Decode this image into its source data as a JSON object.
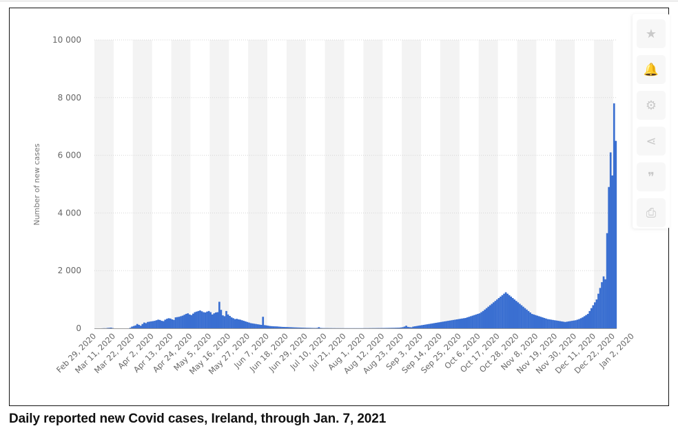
{
  "caption": "Daily reported new Covid cases, Ireland, through Jan. 7, 2021",
  "toolbar": {
    "buttons": [
      {
        "name": "star-icon",
        "glyph": "★"
      },
      {
        "name": "bell-icon",
        "glyph": "🔔"
      },
      {
        "name": "gear-icon",
        "glyph": "⚙"
      },
      {
        "name": "share-icon",
        "glyph": "⋖"
      },
      {
        "name": "quote-icon",
        "glyph": "❞"
      },
      {
        "name": "print-icon",
        "glyph": "⎙"
      }
    ]
  },
  "colors": {
    "bar": "#3a6fd1",
    "band": "#f3f3f3",
    "grid": "#d5d5d5",
    "axis": "#9a9a9a"
  },
  "chart_data": {
    "type": "bar",
    "title": "",
    "xlabel": "",
    "ylabel": "Number of new cases",
    "ylim": [
      0,
      10000
    ],
    "yticks": [
      0,
      2000,
      4000,
      6000,
      8000,
      10000
    ],
    "ytick_labels": [
      "0",
      "2 000",
      "4 000",
      "6 000",
      "8 000",
      "10 000"
    ],
    "grid": true,
    "x_start": "Feb 29, 2020",
    "x_tick_labels": [
      "Feb 29, 2020",
      "Mar 11, 2020",
      "Mar 22, 2020",
      "Apr 2, 2020",
      "Apr 13, 2020",
      "Apr 24, 2020",
      "May 5, 2020",
      "May 16, 2020",
      "May 27, 2020",
      "Jun 7, 2020",
      "Jun 18, 2020",
      "Jun 29, 2020",
      "Jul 10, 2020",
      "Jul 21, 2020",
      "Aug 1, 2020",
      "Aug 12, 2020",
      "Aug 23, 2020",
      "Sep 3, 2020",
      "Sep 14, 2020",
      "Sep 25, 2020",
      "Oct 6, 2020",
      "Oct 17, 2020",
      "Oct 28, 2020",
      "Nov 8, 2020",
      "Nov 19, 2020",
      "Nov 30, 2020",
      "Dec 11, 2020",
      "Dec 22, 2020",
      "Jan 2, 2020"
    ],
    "values": [
      1,
      0,
      0,
      0,
      2,
      5,
      4,
      13,
      18,
      24,
      9,
      0,
      0,
      0,
      0,
      0,
      0,
      0,
      0,
      0,
      20,
      60,
      80,
      100,
      150,
      120,
      90,
      150,
      200,
      180,
      220,
      230,
      240,
      250,
      260,
      280,
      300,
      290,
      260,
      250,
      300,
      330,
      350,
      340,
      310,
      290,
      380,
      390,
      400,
      420,
      440,
      470,
      500,
      520,
      480,
      460,
      510,
      560,
      580,
      600,
      620,
      590,
      560,
      550,
      580,
      600,
      560,
      480,
      520,
      550,
      560,
      920,
      640,
      450,
      420,
      600,
      480,
      430,
      380,
      350,
      320,
      330,
      310,
      300,
      280,
      260,
      240,
      220,
      200,
      180,
      170,
      160,
      150,
      140,
      130,
      120,
      400,
      110,
      100,
      90,
      80,
      75,
      70,
      68,
      66,
      60,
      55,
      50,
      48,
      45,
      44,
      40,
      38,
      35,
      32,
      30,
      28,
      26,
      24,
      22,
      20,
      18,
      17,
      16,
      14,
      13,
      12,
      15,
      40,
      14,
      10,
      9,
      8,
      8,
      7,
      7,
      6,
      6,
      5,
      5,
      5,
      5,
      5,
      5,
      5,
      5,
      5,
      5,
      5,
      5,
      5,
      5,
      5,
      5,
      6,
      6,
      6,
      7,
      7,
      8,
      8,
      9,
      10,
      10,
      11,
      12,
      13,
      14,
      15,
      16,
      17,
      18,
      20,
      22,
      24,
      30,
      40,
      60,
      90,
      50,
      40,
      35,
      60,
      70,
      80,
      90,
      100,
      110,
      120,
      130,
      140,
      150,
      160,
      170,
      180,
      190,
      200,
      210,
      220,
      230,
      240,
      250,
      260,
      270,
      280,
      290,
      300,
      310,
      320,
      330,
      340,
      350,
      360,
      380,
      400,
      420,
      440,
      460,
      480,
      500,
      520,
      560,
      600,
      650,
      700,
      750,
      800,
      850,
      900,
      950,
      1000,
      1050,
      1100,
      1150,
      1200,
      1250,
      1200,
      1150,
      1100,
      1050,
      1000,
      950,
      900,
      850,
      800,
      750,
      700,
      650,
      600,
      550,
      500,
      480,
      460,
      440,
      420,
      400,
      380,
      360,
      340,
      320,
      310,
      300,
      290,
      280,
      270,
      260,
      250,
      240,
      230,
      220,
      230,
      240,
      250,
      260,
      270,
      280,
      300,
      320,
      350,
      380,
      420,
      460,
      500,
      600,
      700,
      800,
      900,
      1000,
      1200,
      1400,
      1600,
      1800,
      1700,
      3300,
      4900,
      6100,
      5300,
      7800,
      6500
    ]
  }
}
